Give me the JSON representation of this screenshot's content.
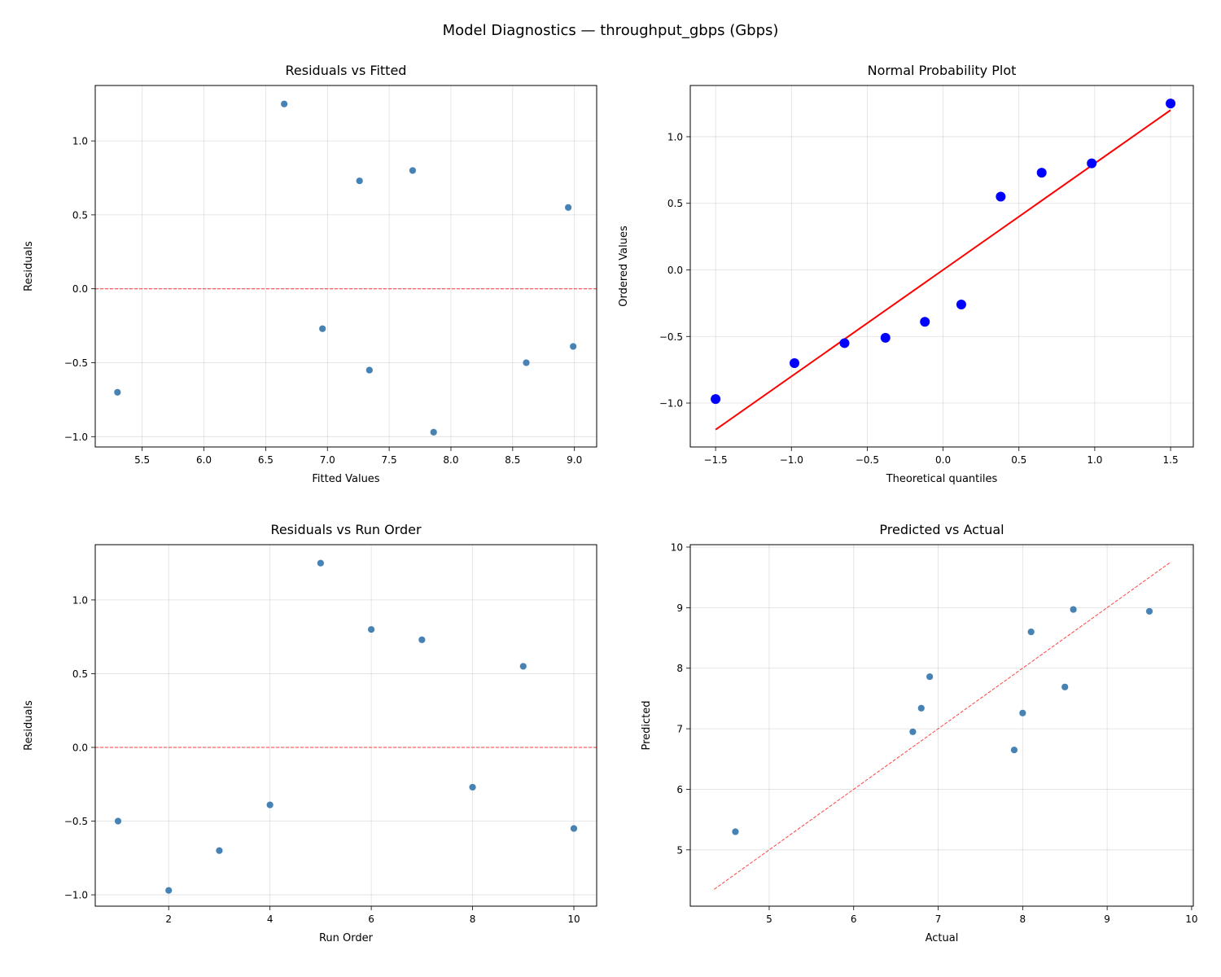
{
  "title": "Model Diagnostics — throughput_gbps (Gbps)",
  "chart_data": [
    {
      "type": "scatter",
      "title": "Residuals vs Fitted",
      "xlabel": "Fitted Values",
      "ylabel": "Residuals",
      "xlim": [
        5.12,
        9.18
      ],
      "ylim": [
        -1.07,
        1.375
      ],
      "xticks": [
        5.5,
        6.0,
        6.5,
        7.0,
        7.5,
        8.0,
        8.5,
        9.0
      ],
      "xtick_labels": [
        "5.5",
        "6.0",
        "6.5",
        "7.0",
        "7.5",
        "8.0",
        "8.5",
        "9.0"
      ],
      "yticks": [
        -1.0,
        -0.5,
        0.0,
        0.5,
        1.0
      ],
      "ytick_labels": [
        "−1.0",
        "−0.5",
        "0.0",
        "0.5",
        "1.0"
      ],
      "grid": true,
      "point_color": "#4682b4",
      "x": [
        5.3,
        6.65,
        6.96,
        7.26,
        7.34,
        7.69,
        7.86,
        8.61,
        8.95,
        8.99
      ],
      "y": [
        -0.7,
        1.25,
        -0.27,
        0.73,
        -0.55,
        0.8,
        -0.97,
        -0.5,
        0.55,
        -0.39
      ],
      "reference_line": {
        "kind": "horizontal",
        "y": 0,
        "color": "#ff0000",
        "style": "dashed"
      }
    },
    {
      "type": "scatter",
      "title": "Normal Probability Plot",
      "xlabel": "Theoretical quantiles",
      "ylabel": "Ordered Values",
      "xlim": [
        -1.667,
        1.65
      ],
      "ylim": [
        -1.33,
        1.385
      ],
      "xticks": [
        -1.5,
        -1.0,
        -0.5,
        0.0,
        0.5,
        1.0,
        1.5
      ],
      "xtick_labels": [
        "−1.5",
        "−1.0",
        "−0.5",
        "0.0",
        "0.5",
        "1.0",
        "1.5"
      ],
      "yticks": [
        -1.0,
        -0.5,
        0.0,
        0.5,
        1.0
      ],
      "ytick_labels": [
        "−1.0",
        "−0.5",
        "0.0",
        "0.5",
        "1.0"
      ],
      "grid": true,
      "point_color": "#0000ff",
      "x": [
        -1.5,
        -0.98,
        -0.65,
        -0.38,
        -0.12,
        0.12,
        0.38,
        0.65,
        0.98,
        1.5
      ],
      "y": [
        -0.97,
        -0.7,
        -0.55,
        -0.51,
        -0.39,
        -0.26,
        0.55,
        0.73,
        0.8,
        1.25
      ],
      "reference_line": {
        "kind": "fit",
        "x": [
          -1.5,
          1.5
        ],
        "y": [
          -1.2,
          1.2
        ],
        "color": "#ff0000",
        "style": "solid"
      }
    },
    {
      "type": "scatter",
      "title": "Residuals vs Run Order",
      "xlabel": "Run Order",
      "ylabel": "Residuals",
      "xlim": [
        0.55,
        10.45
      ],
      "ylim": [
        -1.077,
        1.375
      ],
      "xticks": [
        2,
        4,
        6,
        8,
        10
      ],
      "xtick_labels": [
        "2",
        "4",
        "6",
        "8",
        "10"
      ],
      "yticks": [
        -1.0,
        -0.5,
        0.0,
        0.5,
        1.0
      ],
      "ytick_labels": [
        "−1.0",
        "−0.5",
        "0.0",
        "0.5",
        "1.0"
      ],
      "grid": true,
      "point_color": "#4682b4",
      "x": [
        1,
        2,
        3,
        4,
        5,
        6,
        7,
        8,
        9,
        10
      ],
      "y": [
        -0.5,
        -0.97,
        -0.7,
        -0.39,
        1.25,
        0.8,
        0.73,
        -0.27,
        0.55,
        -0.55
      ],
      "reference_line": {
        "kind": "horizontal",
        "y": 0,
        "color": "#ff0000",
        "style": "dashed"
      }
    },
    {
      "type": "scatter",
      "title": "Predicted vs Actual",
      "xlabel": "Actual",
      "ylabel": "Predicted",
      "xlim": [
        4.066,
        10.02
      ],
      "ylim": [
        4.07,
        10.04
      ],
      "xticks": [
        5,
        6,
        7,
        8,
        9,
        10
      ],
      "xtick_labels": [
        "5",
        "6",
        "7",
        "8",
        "9",
        "10"
      ],
      "yticks": [
        5,
        6,
        7,
        8,
        9,
        10
      ],
      "ytick_labels": [
        "5",
        "6",
        "7",
        "8",
        "9",
        "10"
      ],
      "grid": true,
      "point_color": "#4682b4",
      "x": [
        4.6,
        6.7,
        6.8,
        6.9,
        7.9,
        8.0,
        8.1,
        8.5,
        8.6,
        9.5
      ],
      "y": [
        5.3,
        6.95,
        7.34,
        7.86,
        6.65,
        7.26,
        8.6,
        7.69,
        8.97,
        8.94
      ],
      "reference_line": {
        "kind": "identity",
        "x": [
          4.35,
          9.75
        ],
        "y": [
          4.35,
          9.75
        ],
        "color": "#ff0000",
        "style": "dashed"
      }
    }
  ]
}
